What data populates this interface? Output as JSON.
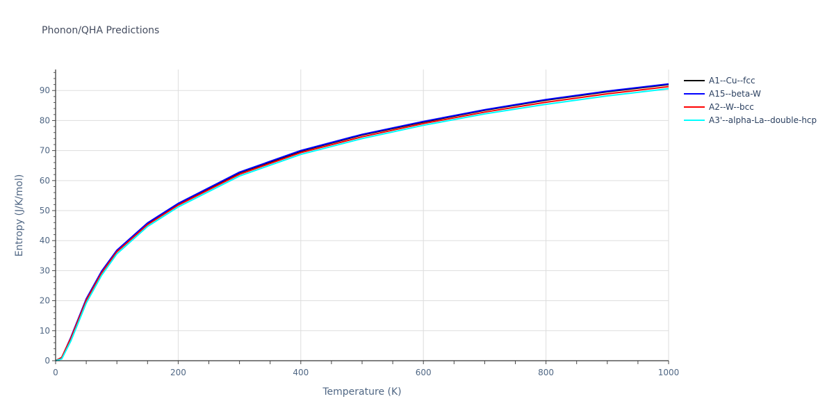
{
  "chart_data": {
    "type": "line",
    "title": "Phonon/QHA Predictions",
    "xlabel": "Temperature (K)",
    "ylabel": "Entropy (J/K/mol)",
    "xlim": [
      0,
      1000
    ],
    "ylim": [
      0,
      97
    ],
    "xticks": [
      0,
      200,
      400,
      600,
      800,
      1000
    ],
    "yticks": [
      0,
      10,
      20,
      30,
      40,
      50,
      60,
      70,
      80,
      90
    ],
    "grid": true,
    "legend_position": "right",
    "x": [
      0,
      10,
      25,
      50,
      75,
      100,
      150,
      200,
      300,
      400,
      500,
      600,
      700,
      800,
      900,
      1000
    ],
    "series": [
      {
        "name": "A1--Cu--fcc",
        "color": "#000000",
        "values": [
          0,
          1.0,
          7.6,
          20.3,
          29.5,
          36.5,
          45.6,
          52.2,
          62.6,
          69.8,
          75.2,
          79.5,
          83.4,
          86.8,
          89.6,
          92.0
        ]
      },
      {
        "name": "A15--beta-W",
        "color": "#0000ff",
        "values": [
          0,
          1.0,
          7.8,
          20.6,
          29.8,
          36.8,
          45.9,
          52.4,
          62.8,
          70.0,
          75.4,
          79.7,
          83.6,
          87.0,
          89.8,
          92.2
        ]
      },
      {
        "name": "A2--W--bcc",
        "color": "#ff0000",
        "values": [
          0,
          1.1,
          7.5,
          20.1,
          29.2,
          36.3,
          45.3,
          51.8,
          62.1,
          69.3,
          74.6,
          79.0,
          82.8,
          86.1,
          88.9,
          91.3
        ]
      },
      {
        "name": "A3'--alpha-La--double-hcp",
        "color": "#00ffff",
        "values": [
          0,
          0.6,
          6.6,
          19.2,
          28.4,
          35.6,
          44.7,
          51.2,
          61.5,
          68.7,
          74.0,
          78.4,
          82.2,
          85.4,
          88.2,
          90.6
        ]
      }
    ]
  }
}
